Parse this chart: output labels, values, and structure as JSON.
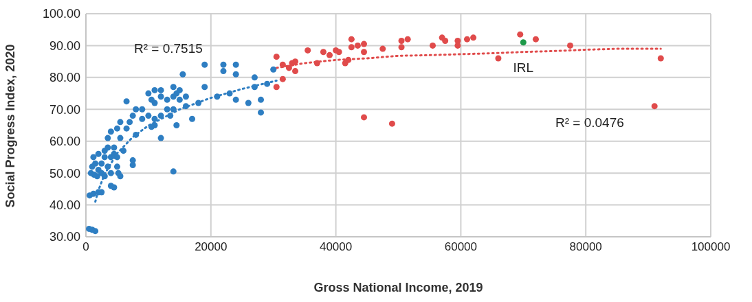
{
  "chart_data": {
    "type": "scatter",
    "xlabel": "Gross National Income, 2019",
    "ylabel": "Social Progress Index, 2020",
    "grid": true,
    "marker": "circle",
    "xlim": [
      0,
      100000
    ],
    "xticks": [
      0,
      20000,
      40000,
      60000,
      80000,
      100000
    ],
    "ylim": [
      30,
      100
    ],
    "yticks": [
      {
        "value": 30,
        "label": "30.00"
      },
      {
        "value": 40,
        "label": "40.00"
      },
      {
        "value": 50,
        "label": "50.00"
      },
      {
        "value": 60,
        "label": "60.00"
      },
      {
        "value": 70,
        "label": "70.00"
      },
      {
        "value": 80,
        "label": "80.00"
      },
      {
        "value": 90,
        "label": "90.00"
      },
      {
        "value": 100,
        "label": "100.00"
      }
    ],
    "annotations": [
      "R² = 0.7515",
      "R² = 0.0476",
      {
        "text": "IRL",
        "x": 70000,
        "y": 91
      }
    ],
    "series": [
      {
        "color": "#2e7ec2",
        "x": [
          500,
          1000,
          1500,
          600,
          1200,
          2000,
          2500,
          800,
          1000,
          1200,
          1500,
          2000,
          2500,
          3000,
          3500,
          4000,
          4500,
          5000,
          5200,
          5500,
          3000,
          2000,
          1800,
          1300,
          4000,
          5000,
          4500,
          3500,
          3000,
          2500,
          6000,
          4500,
          7500,
          7500,
          5500,
          3500,
          6500,
          5000,
          5500,
          4000,
          8000,
          9000,
          7000,
          7500,
          8000,
          9000,
          10000,
          11000,
          12000,
          13000,
          6500,
          10000,
          11000,
          12000,
          11000,
          10500,
          12000,
          13000,
          14000,
          14500,
          15000,
          14000,
          15000,
          16000,
          15500,
          17000,
          14000,
          18000,
          19000,
          19000,
          21000,
          22000,
          22000,
          24000,
          24000,
          23000,
          24000,
          26000,
          27000,
          27000,
          28000,
          28000,
          29000,
          30000,
          11000,
          12000,
          14500,
          13500,
          14000,
          16000,
          10500,
          4000
        ],
        "values": [
          32.5,
          32.2,
          31.8,
          43,
          43.5,
          44,
          44,
          50,
          52,
          55,
          53,
          51,
          50,
          49,
          52,
          55,
          56,
          55,
          50,
          49,
          57,
          56,
          49,
          49.5,
          50,
          52,
          58,
          58,
          55,
          53,
          57,
          45.5,
          54,
          52.5,
          61,
          61,
          64,
          64,
          66,
          63,
          62,
          67,
          66,
          68,
          70,
          70,
          68,
          67,
          68,
          70,
          72.5,
          75,
          76,
          76,
          72,
          73,
          74,
          73,
          74,
          75,
          73,
          77,
          76,
          74,
          81,
          67,
          70,
          72,
          77,
          84,
          74,
          84,
          82,
          84,
          81,
          75,
          73,
          72,
          77,
          80,
          73,
          69,
          78,
          82.5,
          65,
          61,
          65,
          68,
          50.5,
          71,
          64.5,
          46
        ]
      },
      {
        "color": "#e04b4b",
        "x": [
          30500,
          30500,
          31500,
          31500,
          32500,
          33000,
          33500,
          33500,
          35500,
          37000,
          38000,
          39000,
          40000,
          40500,
          41500,
          42000,
          42500,
          42500,
          43500,
          44500,
          44500,
          44500,
          47500,
          49000,
          50500,
          50500,
          51500,
          55500,
          57000,
          57500,
          59500,
          59500,
          61000,
          62000,
          66000,
          69500,
          72000,
          77500,
          91000,
          92000
        ],
        "values": [
          77,
          86.5,
          84,
          79.5,
          83,
          84.5,
          82,
          85,
          88.5,
          84.5,
          88,
          87,
          88.5,
          88,
          84.5,
          85.5,
          92,
          89.5,
          90,
          88,
          90.5,
          67.5,
          89,
          65.5,
          89.5,
          91.5,
          92,
          90,
          92.5,
          91.5,
          90,
          91.5,
          92,
          92.5,
          86,
          93.5,
          92,
          90,
          71,
          86
        ]
      },
      {
        "color": "#1e9a4a",
        "x": [
          70000
        ],
        "values": [
          91
        ]
      },
      {
        "type": "line",
        "color": "#2e7ec2",
        "line_style": "dotted",
        "marker": "none",
        "x": [
          1500,
          2000,
          3000,
          5000,
          7500,
          10000,
          15000,
          20000,
          25000,
          30500
        ],
        "values": [
          41,
          44.6,
          49.7,
          56.2,
          61.3,
          64.9,
          70,
          73.6,
          76.4,
          79
        ]
      },
      {
        "type": "line",
        "color": "#e04b4b",
        "line_style": "dotted",
        "marker": "none",
        "x": [
          30500,
          35000,
          40000,
          45000,
          50000,
          55000,
          60000,
          65000,
          70000,
          75000,
          80000,
          85000,
          92000
        ],
        "values": [
          83,
          84.5,
          85.5,
          86,
          86.8,
          87,
          87.3,
          87.6,
          88,
          88.3,
          88.7,
          89,
          89
        ]
      }
    ]
  }
}
